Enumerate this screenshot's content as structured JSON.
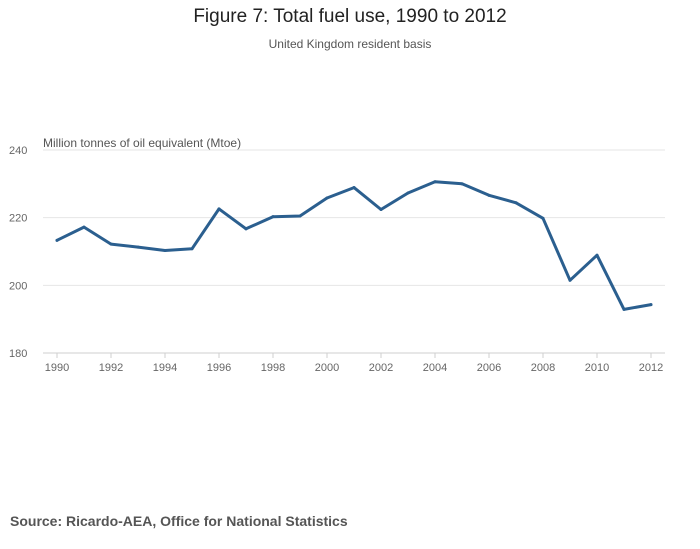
{
  "chart_data": {
    "type": "line",
    "title": "Figure 7: Total fuel use, 1990 to 2012",
    "subtitle": "United Kingdom resident basis",
    "ylabel": "Million tonnes of oil equivalent (Mtoe)",
    "xlabel": "",
    "ylim": [
      180,
      240
    ],
    "yticks": [
      180,
      200,
      220,
      240
    ],
    "xlim": [
      1990,
      2012
    ],
    "xticks": [
      1990,
      1992,
      1994,
      1996,
      1998,
      2000,
      2002,
      2004,
      2006,
      2008,
      2010,
      2012
    ],
    "grid": true,
    "legend": "none",
    "series": [
      {
        "color": "#2b5f8f",
        "x": [
          1990,
          1991,
          1992,
          1993,
          1994,
          1995,
          1996,
          1997,
          1998,
          1999,
          2000,
          2001,
          2002,
          2003,
          2004,
          2005,
          2006,
          2007,
          2008,
          2009,
          2010,
          2011,
          2012
        ],
        "values": [
          213.3,
          217.2,
          212.2,
          211.3,
          210.3,
          210.8,
          222.6,
          216.7,
          220.3,
          220.5,
          225.8,
          228.9,
          222.4,
          227.3,
          230.6,
          230.0,
          226.6,
          224.4,
          219.8,
          201.5,
          208.9,
          192.9,
          194.3
        ]
      }
    ]
  },
  "source": "Source: Ricardo-AEA, Office for National Statistics"
}
